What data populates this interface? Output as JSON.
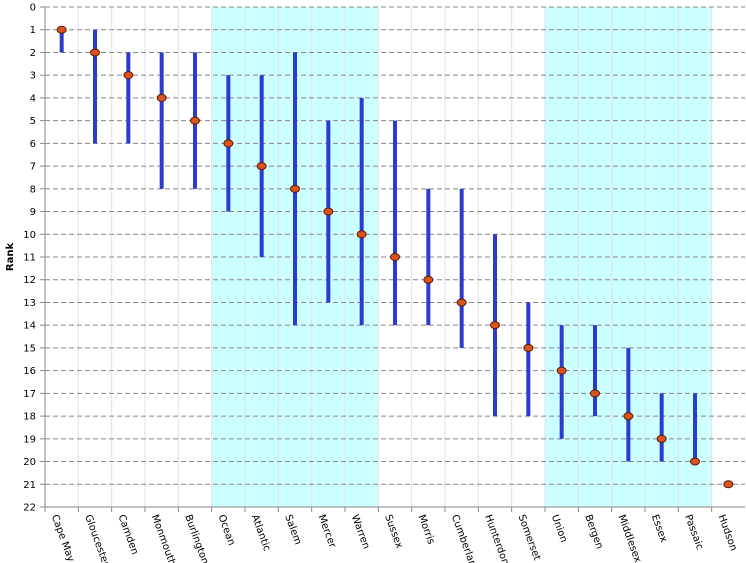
{
  "chart_data": {
    "type": "rank-interval",
    "y_label": "Rank",
    "categories": [
      "Cape May",
      "Gloucester",
      "Camden",
      "Monmouth",
      "Burlington",
      "Ocean",
      "Atlantic",
      "Salem",
      "Mercer",
      "Warren",
      "Sussex",
      "Morris",
      "Cumberland",
      "Hunterdon",
      "Somerset",
      "Union",
      "Bergen",
      "Middlesex",
      "Essex",
      "Passaic",
      "Hudson"
    ],
    "rank": [
      1,
      2,
      3,
      4,
      5,
      6,
      7,
      8,
      9,
      10,
      11,
      12,
      13,
      14,
      15,
      16,
      17,
      18,
      19,
      20,
      21
    ],
    "low": [
      1,
      1,
      2,
      2,
      2,
      3,
      3,
      2,
      5,
      4,
      5,
      8,
      8,
      10,
      13,
      14,
      14,
      15,
      17,
      17,
      21
    ],
    "high": [
      2,
      6,
      6,
      8,
      8,
      9,
      11,
      14,
      13,
      14,
      14,
      14,
      15,
      18,
      18,
      19,
      18,
      20,
      20,
      20,
      21
    ],
    "ylim": [
      0,
      22
    ],
    "yticks": [
      0,
      1,
      2,
      3,
      4,
      5,
      6,
      7,
      8,
      9,
      10,
      11,
      12,
      13,
      14,
      15,
      16,
      17,
      18,
      19,
      20,
      21,
      22
    ],
    "y_inverted": true,
    "grid": true,
    "bar_color": "#2b3bd1",
    "point_color": "#d9541e",
    "shaded_bands": [
      [
        5,
        9
      ],
      [
        15,
        19
      ]
    ],
    "band_color": "#ccffff"
  }
}
